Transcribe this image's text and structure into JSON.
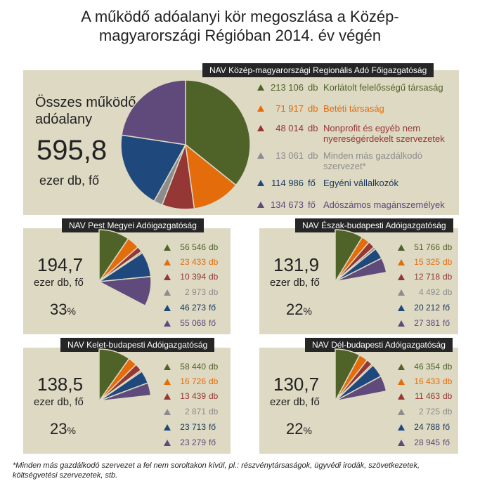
{
  "title_line1": "A működő adóalanyi kör megoszlása a Közép-",
  "title_line2": "magyarországi Régióban 2014. év végén",
  "colors": {
    "green": "#4f6228",
    "orange": "#e46c0a",
    "red": "#953735",
    "gray": "#8c8c8c",
    "blue": "#1f497d",
    "purple": "#604a7b",
    "darkblue_text": "#17375e"
  },
  "main": {
    "header": "NAV Közép-magyarországi Regionális Adó Főigazgatóság",
    "total_label_1": "Összes működő",
    "total_label_2": "adóalany",
    "total_value": "595,8",
    "total_unit": "ezer db, fő",
    "legend": [
      {
        "value": "213 106",
        "unit": "db",
        "label": "Korlátolt felelősségű társaság"
      },
      {
        "value": "71 917",
        "unit": "db",
        "label": "Betéti társaság"
      },
      {
        "value": "48 014",
        "unit": "db",
        "label": "Nonprofit és egyéb nem nyereségérdekelt szervezetek"
      },
      {
        "value": "13 061",
        "unit": "db",
        "label": "Minden más gazdálkodó szervezet*"
      },
      {
        "value": "114 986",
        "unit": "fő",
        "label": "Egyéni vállalkozók"
      },
      {
        "value": "134 673",
        "unit": "fő",
        "label": "Adószámos magánszemélyek"
      }
    ]
  },
  "subs": [
    {
      "header": "NAV Pest Megyei Adóigazgatóság",
      "value": "194,7",
      "unit": "ezer db, fő",
      "pct": "33",
      "pct_sign": "%",
      "legend": [
        {
          "value": "56 546",
          "unit": "db"
        },
        {
          "value": "23 433",
          "unit": "db"
        },
        {
          "value": "10 394",
          "unit": "db"
        },
        {
          "value": "2 973",
          "unit": "db"
        },
        {
          "value": "46 273",
          "unit": "fő"
        },
        {
          "value": "55 068",
          "unit": "fő"
        }
      ]
    },
    {
      "header": "NAV Észak-budapesti Adóigazgatóság",
      "value": "131,9",
      "unit": "ezer db, fő",
      "pct": "22",
      "pct_sign": "%",
      "legend": [
        {
          "value": "51 766",
          "unit": "db"
        },
        {
          "value": "15 325",
          "unit": "db"
        },
        {
          "value": "12 718",
          "unit": "db"
        },
        {
          "value": "4 492",
          "unit": "db"
        },
        {
          "value": "20 212",
          "unit": "fő"
        },
        {
          "value": "27 381",
          "unit": "fő"
        }
      ]
    },
    {
      "header": "NAV Kelet-budapesti Adóigazgatóság",
      "value": "138,5",
      "unit": "ezer db, fő",
      "pct": "23",
      "pct_sign": "%",
      "legend": [
        {
          "value": "58 440",
          "unit": "db"
        },
        {
          "value": "16 726",
          "unit": "db"
        },
        {
          "value": "13 439",
          "unit": "db"
        },
        {
          "value": "2 871",
          "unit": "db"
        },
        {
          "value": "23 713",
          "unit": "fő"
        },
        {
          "value": "23 279",
          "unit": "fő"
        }
      ]
    },
    {
      "header": "NAV Dél-budapesti Adóigazgatóság",
      "value": "130,7",
      "unit": "ezer db, fő",
      "pct": "22",
      "pct_sign": "%",
      "legend": [
        {
          "value": "46 354",
          "unit": "db"
        },
        {
          "value": "16 433",
          "unit": "db"
        },
        {
          "value": "11 463",
          "unit": "db"
        },
        {
          "value": "2 725",
          "unit": "db"
        },
        {
          "value": "24 788",
          "unit": "fő"
        },
        {
          "value": "28 945",
          "unit": "fő"
        }
      ]
    }
  ],
  "footnote": "*Minden más gazdálkodó szervezet a fel nem soroltakon kívül, pl.: részvénytársaságok, ügyvédi irodák, szövetkezetek, költségvetési szervezetek, stb.",
  "chart_data": [
    {
      "type": "pie",
      "title": "NAV Közép-magyarországi Regionális Adó Főigazgatóság",
      "categories": [
        "Korlátolt felelősségű társaság",
        "Betéti társaság",
        "Nonprofit és egyéb nem nyereségérdekelt szervezetek",
        "Minden más gazdálkodó szervezet*",
        "Egyéni vállalkozók",
        "Adószámos magánszemélyek"
      ],
      "values": [
        213106,
        71917,
        48014,
        13061,
        114986,
        134673
      ]
    },
    {
      "type": "pie",
      "title": "NAV Pest Megyei Adóigazgatóság",
      "values": [
        56546,
        23433,
        10394,
        2973,
        46273,
        55068
      ],
      "share_of_region": 0.33
    },
    {
      "type": "pie",
      "title": "NAV Észak-budapesti Adóigazgatóság",
      "values": [
        51766,
        15325,
        12718,
        4492,
        20212,
        27381
      ],
      "share_of_region": 0.22
    },
    {
      "type": "pie",
      "title": "NAV Kelet-budapesti Adóigazgatóság",
      "values": [
        58440,
        16726,
        13439,
        2871,
        23713,
        23279
      ],
      "share_of_region": 0.23
    },
    {
      "type": "pie",
      "title": "NAV Dél-budapesti Adóigazgatóság",
      "values": [
        46354,
        16433,
        11463,
        2725,
        24788,
        28945
      ],
      "share_of_region": 0.22
    }
  ]
}
